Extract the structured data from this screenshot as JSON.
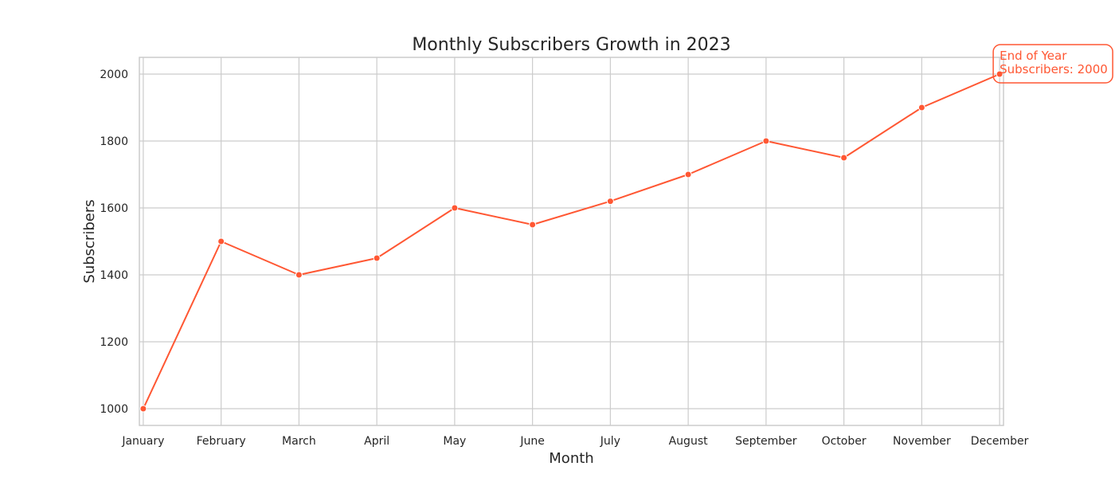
{
  "chart_data": {
    "type": "line",
    "title": "Monthly Subscribers Growth in 2023",
    "xlabel": "Month",
    "ylabel": "Subscribers",
    "categories": [
      "January",
      "February",
      "March",
      "April",
      "May",
      "June",
      "July",
      "August",
      "September",
      "October",
      "November",
      "December"
    ],
    "series": [
      {
        "values": [
          1000,
          1500,
          1400,
          1450,
          1600,
          1550,
          1620,
          1700,
          1800,
          1750,
          1900,
          2000
        ]
      }
    ],
    "ylim": [
      950,
      2050
    ],
    "yticks": [
      1000,
      1200,
      1400,
      1600,
      1800,
      2000
    ],
    "grid": true,
    "annotation": {
      "lines": [
        "End of Year",
        "Subscribers: 2000"
      ],
      "category": "December",
      "value": 2000
    },
    "colors": {
      "line": "#ff5733",
      "grid": "#cccccc",
      "axes_edge": "#cccccc",
      "text": "#262626"
    }
  }
}
